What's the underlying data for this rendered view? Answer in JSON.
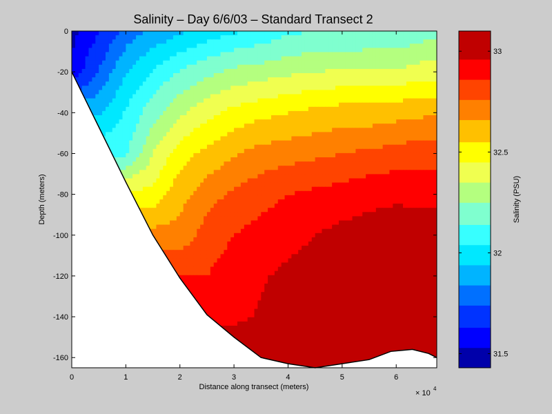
{
  "chart_data": {
    "type": "heatmap",
    "subtype": "filled-contour",
    "title": "Salinity – Day 6/6/03 – Standard Transect 2",
    "xlabel": "Distance along transect (meters)",
    "ylabel": "Depth (meters)",
    "x_multiplier_label": "× 10",
    "x_multiplier_exponent": "4",
    "xlim": [
      0,
      67500
    ],
    "ylim": [
      -165,
      0
    ],
    "x_ticks": [
      0,
      10000,
      20000,
      30000,
      40000,
      50000,
      60000
    ],
    "x_tick_labels": [
      "0",
      "1",
      "2",
      "3",
      "4",
      "5",
      "6"
    ],
    "y_ticks": [
      0,
      -20,
      -40,
      -60,
      -80,
      -100,
      -120,
      -140,
      -160
    ],
    "y_tick_labels": [
      "0",
      "-20",
      "-40",
      "-60",
      "-80",
      "-100",
      "-120",
      "-140",
      "-160"
    ],
    "colorbar": {
      "label": "Salinity (PSU)",
      "range": [
        31.43,
        33.1
      ],
      "ticks": [
        31.5,
        32,
        32.5,
        33
      ],
      "tick_labels": [
        "31.5",
        "32",
        "32.5",
        "33"
      ],
      "levels": [
        31.43,
        31.53,
        31.63,
        31.74,
        31.84,
        31.94,
        32.04,
        32.14,
        32.25,
        32.35,
        32.45,
        32.55,
        32.66,
        32.76,
        32.86,
        32.96,
        33.1
      ],
      "colors": [
        "#0000aa",
        "#0000ff",
        "#0033ff",
        "#0070ff",
        "#00b4ff",
        "#00e8ff",
        "#37ffff",
        "#7fffcf",
        "#b4ff7f",
        "#f0ff50",
        "#ffff00",
        "#ffc000",
        "#ff8000",
        "#ff4400",
        "#ff0000",
        "#c00000"
      ]
    },
    "bathymetry": {
      "x": [
        0,
        5000,
        10000,
        15000,
        20000,
        25000,
        30000,
        35000,
        40000,
        45000,
        50000,
        55000,
        59000,
        63000,
        66000,
        67500
      ],
      "depth": [
        -20,
        -47,
        -74,
        -100,
        -121,
        -139,
        -150,
        -160,
        -163,
        -165,
        -163,
        -161,
        -157,
        -156,
        -158,
        -160
      ]
    },
    "data": {
      "x": [
        0,
        5000,
        10000,
        15000,
        20000,
        25000,
        30000,
        35000,
        40000,
        45000,
        50000,
        55000,
        60000,
        65000,
        67500
      ],
      "depth": [
        0,
        -20,
        -40,
        -60,
        -80,
        -100,
        -120,
        -140,
        -160
      ],
      "salinity": [
        [
          31.5,
          31.62,
          31.78,
          31.86,
          31.92,
          31.98,
          32.02,
          32.06,
          32.12,
          32.14,
          32.14,
          32.16,
          32.16,
          32.2,
          32.2
        ],
        [
          31.55,
          31.75,
          31.93,
          32.05,
          32.15,
          32.22,
          32.28,
          32.3,
          32.33,
          32.35,
          32.36,
          32.36,
          32.36,
          32.4,
          32.4
        ],
        [
          null,
          31.92,
          32.05,
          32.2,
          32.33,
          32.42,
          32.48,
          32.52,
          32.55,
          32.58,
          32.6,
          32.6,
          32.62,
          32.64,
          32.64
        ],
        [
          null,
          null,
          32.12,
          32.35,
          32.5,
          32.58,
          32.65,
          32.7,
          32.72,
          32.74,
          32.76,
          32.78,
          32.8,
          32.82,
          32.82
        ],
        [
          null,
          null,
          null,
          32.48,
          32.62,
          32.72,
          32.78,
          32.82,
          32.86,
          32.88,
          32.9,
          32.93,
          32.94,
          32.92,
          32.92
        ],
        [
          null,
          null,
          null,
          null,
          32.7,
          32.8,
          32.86,
          32.9,
          32.93,
          32.96,
          32.99,
          33.0,
          33.02,
          33.04,
          33.04
        ],
        [
          null,
          null,
          null,
          null,
          null,
          32.86,
          32.92,
          32.95,
          32.98,
          33.0,
          33.02,
          33.04,
          33.06,
          33.08,
          33.08
        ],
        [
          null,
          null,
          null,
          null,
          null,
          null,
          32.94,
          32.97,
          33.0,
          33.03,
          33.05,
          33.07,
          33.08,
          33.08,
          33.08
        ],
        [
          null,
          null,
          null,
          null,
          null,
          null,
          null,
          null,
          33.04,
          33.06,
          33.07,
          33.08,
          33.08,
          33.08,
          33.08
        ]
      ]
    }
  }
}
